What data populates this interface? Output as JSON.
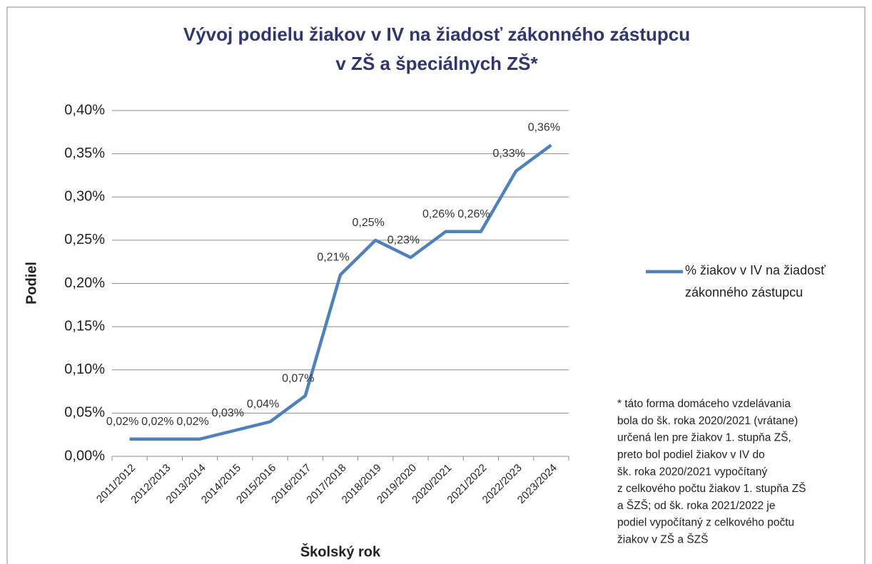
{
  "chart_data": {
    "type": "line",
    "title": [
      "Vývoj podielu žiakov v IV na žiadosť zákonného zástupcu",
      "v ZŠ a špeciálnych ZŠ*"
    ],
    "x_label": "Školský rok",
    "y_label": "Podiel",
    "categories": [
      "2011/2012",
      "2012/2013",
      "2013/2014",
      "2014/2015",
      "2015/2016",
      "2016/2017",
      "2017/2018",
      "2018/2019",
      "2019/2020",
      "2020/2021",
      "2021/2022",
      "2022/2023",
      "2023/2024"
    ],
    "series": [
      {
        "name": "% žiakov v IV na žiadosť zákonného zástupcu",
        "color": "#4f81bd",
        "values": [
          0.02,
          0.02,
          0.02,
          0.03,
          0.04,
          0.07,
          0.21,
          0.25,
          0.23,
          0.26,
          0.26,
          0.33,
          0.36
        ],
        "value_labels": [
          "0,02%",
          "0,02%",
          "0,02%",
          "0,03%",
          "0,04%",
          "0,07%",
          "0,21%",
          "0,25%",
          "0,23%",
          "0,26%",
          "0,26%",
          "0,33%",
          "0,36%"
        ]
      }
    ],
    "ylim": [
      0,
      0.4
    ],
    "yticks": [
      {
        "value": 0,
        "label": "0,00%"
      },
      {
        "value": 0.05,
        "label": "0,05%"
      },
      {
        "value": 0.1,
        "label": "0,10%"
      },
      {
        "value": 0.15,
        "label": "0,15%"
      },
      {
        "value": 0.2,
        "label": "0,20%"
      },
      {
        "value": 0.25,
        "label": "0,25%"
      },
      {
        "value": 0.3,
        "label": "0,30%"
      },
      {
        "value": 0.35,
        "label": "0,35%"
      },
      {
        "value": 0.4,
        "label": "0,40%"
      }
    ],
    "grid": true,
    "legend": "right",
    "note": [
      "* táto forma domáceho vzdelávania",
      "bola do šk. roka 2020/2021 (vrátane)",
      "určená len pre žiakov 1. stupňa ZŠ,",
      "preto bol podiel žiakov v IV do",
      "šk. roka 2020/2021 vypočítaný",
      "z celkového počtu žiakov 1. stupňa ZŠ",
      "a ŠZŠ; od šk. roka 2021/2022 je",
      "podiel vypočítaný z celkového počtu",
      "žiakov v ZŠ a ŠZŠ"
    ]
  }
}
